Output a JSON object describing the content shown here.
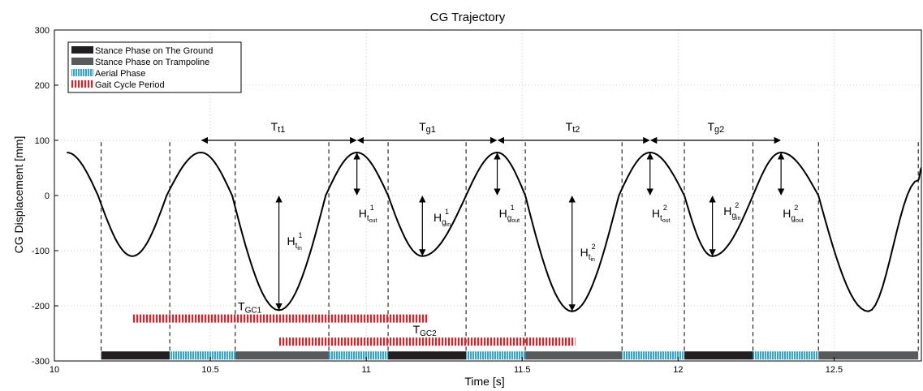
{
  "chart_data": {
    "type": "line",
    "title": "CG Trajectory",
    "xlabel": "Time [s]",
    "ylabel": "CG Displacement [mm]",
    "xlim": [
      10,
      12.78
    ],
    "ylim": [
      -300,
      300
    ],
    "xticks": [
      10,
      10.5,
      11,
      11.5,
      12,
      12.5
    ],
    "xtick_labels": [
      "10",
      "10.5",
      "11",
      "11.5",
      "12",
      "12.5"
    ],
    "yticks": [
      -300,
      -200,
      -100,
      0,
      100,
      200,
      300
    ],
    "ytick_labels": [
      "-300",
      "-200",
      "-100",
      "0",
      "100",
      "200",
      "300"
    ],
    "grid": true,
    "legend_position": "top-left",
    "series": [
      {
        "name": "",
        "color": "#000000",
        "x": [
          10.04,
          10.14,
          10.25,
          10.36,
          10.47,
          10.57,
          10.72,
          10.87,
          10.97,
          11.07,
          11.18,
          11.32,
          11.42,
          11.51,
          11.66,
          11.81,
          11.91,
          12.02,
          12.11,
          12.24,
          12.33,
          12.45,
          12.61,
          12.77,
          12.78
        ],
        "y": [
          78,
          0,
          -110,
          0,
          78,
          0,
          -208,
          0,
          78,
          0,
          -110,
          0,
          78,
          0,
          -210,
          0,
          78,
          0,
          -110,
          0,
          78,
          0,
          -210,
          28,
          50
        ]
      }
    ],
    "phase_bar": {
      "y": -290,
      "segments": [
        {
          "phase": "ground",
          "x0": 10.15,
          "x1": 10.37
        },
        {
          "phase": "aerial",
          "x0": 10.37,
          "x1": 10.58
        },
        {
          "phase": "trampoline",
          "x0": 10.58,
          "x1": 10.88
        },
        {
          "phase": "aerial",
          "x0": 10.88,
          "x1": 11.07
        },
        {
          "phase": "ground",
          "x0": 11.07,
          "x1": 11.32
        },
        {
          "phase": "aerial",
          "x0": 11.32,
          "x1": 11.51
        },
        {
          "phase": "trampoline",
          "x0": 11.51,
          "x1": 11.82
        },
        {
          "phase": "aerial",
          "x0": 11.82,
          "x1": 12.02
        },
        {
          "phase": "ground",
          "x0": 12.02,
          "x1": 12.24
        },
        {
          "phase": "aerial",
          "x0": 12.24,
          "x1": 12.45
        },
        {
          "phase": "trampoline",
          "x0": 12.45,
          "x1": 12.77
        }
      ]
    },
    "gait_cycles": [
      {
        "label": "T",
        "sub": "GC1",
        "x0": 10.25,
        "x1": 11.2,
        "y": -223
      },
      {
        "label": "T",
        "sub": "GC2",
        "x0": 10.72,
        "x1": 11.67,
        "y": -265
      }
    ],
    "transition_lines": [
      10.15,
      10.37,
      10.58,
      10.88,
      11.07,
      11.32,
      11.51,
      11.82,
      12.02,
      12.24,
      12.45,
      12.77
    ],
    "period_spans": [
      {
        "label": "T",
        "sub": "t1",
        "x0": 10.47,
        "x1": 10.97,
        "y": 100
      },
      {
        "label": "T",
        "sub": "g1",
        "x0": 10.97,
        "x1": 11.42,
        "y": 100
      },
      {
        "label": "T",
        "sub": "t2",
        "x0": 11.42,
        "x1": 11.91,
        "y": 100
      },
      {
        "label": "T",
        "sub": "g2",
        "x0": 11.91,
        "x1": 12.33,
        "y": 100
      }
    ],
    "height_arrows": [
      {
        "main": "H",
        "sub": "t",
        "subsub": "in",
        "sup": "1",
        "x": 10.72,
        "y0": 0,
        "y1": -208,
        "lx": 10.73,
        "ly": -90
      },
      {
        "main": "H",
        "sub": "t",
        "subsub": "out",
        "sup": "1",
        "x": 10.97,
        "y0": 78,
        "y1": 0,
        "lx": 10.96,
        "ly": -40
      },
      {
        "main": "H",
        "sub": "g",
        "subsub": "in",
        "sup": "1",
        "x": 11.18,
        "y0": 0,
        "y1": -110,
        "lx": 11.2,
        "ly": -47
      },
      {
        "main": "H",
        "sub": "g",
        "subsub": "out",
        "sup": "1",
        "x": 11.42,
        "y0": 78,
        "y1": 0,
        "lx": 11.41,
        "ly": -40
      },
      {
        "main": "H",
        "sub": "t",
        "subsub": "in",
        "sup": "2",
        "x": 11.66,
        "y0": 0,
        "y1": -210,
        "lx": 11.67,
        "ly": -110
      },
      {
        "main": "H",
        "sub": "t",
        "subsub": "out",
        "sup": "2",
        "x": 11.91,
        "y0": 78,
        "y1": 0,
        "lx": 11.9,
        "ly": -40
      },
      {
        "main": "H",
        "sub": "g",
        "subsub": "in",
        "sup": "2",
        "x": 12.11,
        "y0": 0,
        "y1": -110,
        "lx": 12.13,
        "ly": -35
      },
      {
        "main": "H",
        "sub": "g",
        "subsub": "out",
        "sup": "2",
        "x": 12.33,
        "y0": 78,
        "y1": 0,
        "lx": 12.32,
        "ly": -40
      }
    ],
    "legend": [
      {
        "label": "Stance Phase on The Ground",
        "style": "ground"
      },
      {
        "label": "Stance Phase on Trampoline",
        "style": "trampoline"
      },
      {
        "label": "Aerial Phase",
        "style": "aerial"
      },
      {
        "label": "Gait Cycle Period",
        "style": "gait"
      }
    ],
    "colors": {
      "ground": "#231f20",
      "trampoline": "#58595b",
      "aerial": "#29a8e0",
      "aerial_stripe": "#ffffff",
      "gait": "#e31e24",
      "grid": "#cfcfcf",
      "curve": "#000000"
    }
  }
}
